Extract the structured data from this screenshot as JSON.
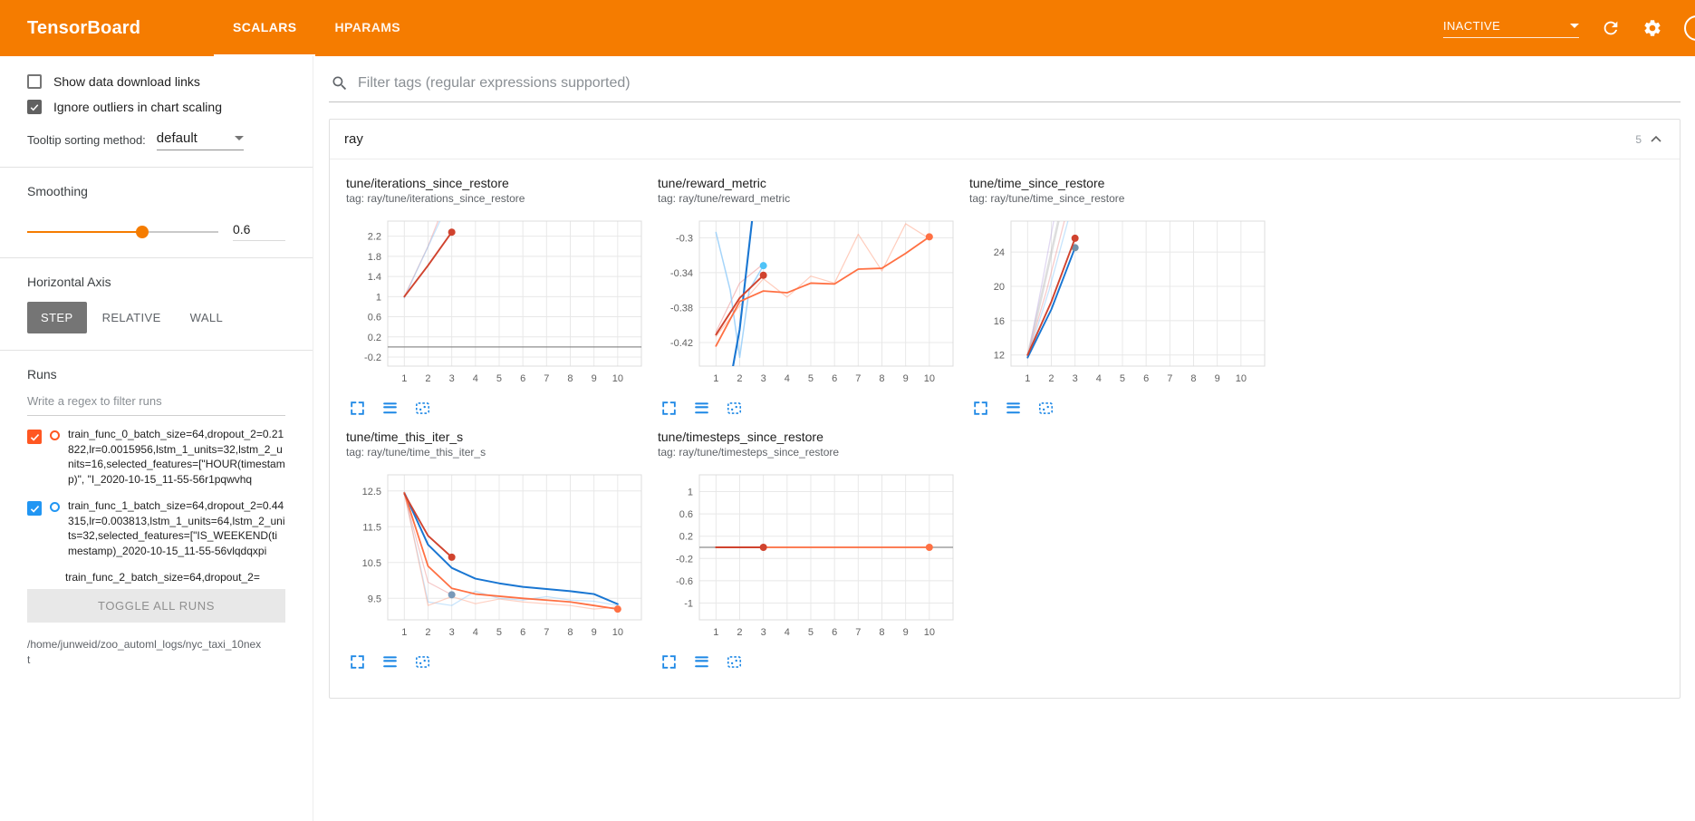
{
  "header": {
    "brand": "TensorBoard",
    "tabs": [
      {
        "label": "SCALARS"
      },
      {
        "label": "HPARAMS"
      }
    ],
    "active_tab": "SCALARS",
    "status_label": "INACTIVE",
    "accent_color": "#f57c00"
  },
  "sidebar": {
    "options": [
      {
        "label": "Show data download links",
        "checked": false
      },
      {
        "label": "Ignore outliers in chart scaling",
        "checked": true
      }
    ],
    "tooltip_sorting": {
      "label": "Tooltip sorting method:",
      "value": "default"
    },
    "smoothing": {
      "label": "Smoothing",
      "value": "0.6",
      "percent": 60
    },
    "horizontal_axis": {
      "label": "Horizontal Axis",
      "options": [
        "STEP",
        "RELATIVE",
        "WALL"
      ],
      "selected": "STEP"
    },
    "runs": {
      "label": "Runs",
      "filter_placeholder": "Write a regex to filter runs",
      "items": [
        {
          "label": "train_func_0_batch_size=64,dropout_2=0.21822,lr=0.0015956,lstm_1_units=32,lstm_2_units=16,selected_features=[\"HOUR(timestamp)\", \"I_2020-10-15_11-55-56r1pqwvhq",
          "checked": true,
          "color": "#ff5722"
        },
        {
          "label": "train_func_1_batch_size=64,dropout_2=0.44315,lr=0.003813,lstm_1_units=64,lstm_2_units=32,selected_features=[\"IS_WEEKEND(timestamp)_2020-10-15_11-55-56vlqdqxpi",
          "checked": true,
          "color": "#2196f3"
        },
        {
          "label": "train_func_2_batch_size=64,dropout_2=",
          "checked": true,
          "color": "#9e9e9e",
          "partially_visible": true
        }
      ],
      "toggle_all_label": "TOGGLE ALL RUNS",
      "log_dir": "/home/junweid/zoo_automl_logs/nyc_taxi_10next"
    }
  },
  "main": {
    "filter_placeholder": "Filter tags (regular expressions supported)",
    "group": {
      "name": "ray",
      "count": "5"
    }
  },
  "chart_data": [
    {
      "type": "line",
      "title": "tune/iterations_since_restore",
      "tag_label": "tag: ray/tune/iterations_since_restore",
      "xlim": [
        0.3,
        11
      ],
      "ylim": [
        -0.38,
        2.5
      ],
      "x_ticks": [
        1,
        2,
        3,
        4,
        5,
        6,
        7,
        8,
        9,
        10
      ],
      "y_ticks": [
        -0.2,
        0.2,
        0.6,
        1,
        1.4,
        1.8,
        2.2
      ],
      "zero_line": true,
      "series": [
        {
          "name": "raw-pink",
          "color": "#ef9a9a",
          "opacity": 0.5,
          "width": 1.3,
          "points": [
            [
              1,
              1
            ],
            [
              1.5,
              1.5
            ],
            [
              2,
              2
            ],
            [
              2.42,
              2.5
            ]
          ]
        },
        {
          "name": "raw-lightblue",
          "color": "#90caf9",
          "opacity": 0.5,
          "width": 1.3,
          "points": [
            [
              1,
              0.97
            ],
            [
              1.5,
              1.49
            ],
            [
              2,
              1.99
            ],
            [
              2.5,
              2.5
            ]
          ]
        },
        {
          "name": "smoothed-red",
          "color": "#d0432e",
          "width": 1.9,
          "dot": true,
          "points": [
            [
              1,
              1
            ],
            [
              2,
              1.62
            ],
            [
              3,
              2.28
            ]
          ]
        }
      ]
    },
    {
      "type": "line",
      "title": "tune/reward_metric",
      "tag_label": "tag: ray/tune/reward_metric",
      "xlim": [
        0.3,
        11
      ],
      "ylim": [
        -0.447,
        -0.281
      ],
      "x_ticks": [
        1,
        2,
        3,
        4,
        5,
        6,
        7,
        8,
        9,
        10
      ],
      "y_ticks": [
        -0.42,
        -0.38,
        -0.34,
        -0.3
      ],
      "zero_line": false,
      "series": [
        {
          "name": "raw-lightorange",
          "color": "#ffab91",
          "opacity": 0.6,
          "width": 1.2,
          "points": [
            [
              1,
              -0.413
            ],
            [
              2,
              -0.378
            ],
            [
              3,
              -0.347
            ],
            [
              4,
              -0.368
            ],
            [
              5,
              -0.344
            ],
            [
              6,
              -0.352
            ],
            [
              7,
              -0.296
            ],
            [
              8,
              -0.338
            ],
            [
              9,
              -0.284
            ],
            [
              10,
              -0.301
            ]
          ]
        },
        {
          "name": "raw-pink",
          "color": "#ef9a9a",
          "opacity": 0.6,
          "width": 1.2,
          "points": [
            [
              1,
              -0.408
            ],
            [
              2,
              -0.352
            ],
            [
              3,
              -0.33
            ]
          ]
        },
        {
          "name": "raw-lightblue",
          "color": "#90caf9",
          "opacity": 0.8,
          "width": 1.5,
          "dot": true,
          "dot_color": "#4fc3f7",
          "points": [
            [
              1,
              -0.294
            ],
            [
              1.6,
              -0.36
            ],
            [
              2,
              -0.437
            ],
            [
              2.4,
              -0.36
            ],
            [
              3,
              -0.332
            ]
          ]
        },
        {
          "name": "smoothed-blue",
          "color": "#1976d2",
          "width": 2.1,
          "points": [
            [
              1.72,
              -0.447
            ],
            [
              2,
              -0.405
            ],
            [
              2.25,
              -0.345
            ],
            [
              2.52,
              -0.281
            ]
          ]
        },
        {
          "name": "smoothed-orange",
          "color": "#ff7043",
          "width": 1.8,
          "dot": true,
          "points": [
            [
              1,
              -0.424
            ],
            [
              2,
              -0.373
            ],
            [
              3,
              -0.361
            ],
            [
              4,
              -0.363
            ],
            [
              5,
              -0.352
            ],
            [
              6,
              -0.353
            ],
            [
              7,
              -0.336
            ],
            [
              8,
              -0.335
            ],
            [
              9,
              -0.318
            ],
            [
              10,
              -0.299
            ]
          ]
        },
        {
          "name": "smoothed-red",
          "color": "#d0432e",
          "width": 1.9,
          "dot": true,
          "points": [
            [
              1,
              -0.411
            ],
            [
              1.5,
              -0.39
            ],
            [
              2,
              -0.369
            ],
            [
              2.5,
              -0.356
            ],
            [
              3,
              -0.343
            ]
          ]
        }
      ]
    },
    {
      "type": "line",
      "title": "tune/time_since_restore",
      "tag_label": "tag: ray/tune/time_since_restore",
      "xlim": [
        0.3,
        11
      ],
      "ylim": [
        10.7,
        27.6
      ],
      "x_ticks": [
        1,
        2,
        3,
        4,
        5,
        6,
        7,
        8,
        9,
        10
      ],
      "y_ticks": [
        12,
        16,
        20,
        24
      ],
      "zero_line": false,
      "series": [
        {
          "name": "raw-gray",
          "color": "#bdbdbd",
          "opacity": 0.5,
          "width": 2.6,
          "points": [
            [
              1,
              11.9
            ],
            [
              1.6,
              19
            ],
            [
              2.3,
              27.6
            ]
          ]
        },
        {
          "name": "raw-lavender",
          "color": "#b39ddb",
          "opacity": 0.4,
          "width": 1.3,
          "points": [
            [
              1,
              11.6
            ],
            [
              1.55,
              19.5
            ],
            [
              2.1,
              27.6
            ]
          ]
        },
        {
          "name": "raw-pink",
          "color": "#ef9a9a",
          "opacity": 0.5,
          "width": 1.3,
          "points": [
            [
              1,
              12
            ],
            [
              1.8,
              19.5
            ],
            [
              2.55,
              27.6
            ]
          ]
        },
        {
          "name": "raw-lightblue",
          "color": "#90caf9",
          "opacity": 0.5,
          "width": 1.3,
          "points": [
            [
              1,
              11.7
            ],
            [
              1.9,
              19.5
            ],
            [
              2.7,
              27.6
            ]
          ]
        },
        {
          "name": "smoothed-blue",
          "color": "#1976d2",
          "width": 1.9,
          "dot": true,
          "dot_color": "#7191a8",
          "points": [
            [
              1,
              11.7
            ],
            [
              2,
              17.3
            ],
            [
              3,
              24.5
            ]
          ]
        },
        {
          "name": "smoothed-red",
          "color": "#d0432e",
          "width": 1.9,
          "dot": true,
          "points": [
            [
              1,
              12
            ],
            [
              2,
              18.2
            ],
            [
              3,
              25.6
            ]
          ]
        }
      ]
    },
    {
      "type": "line",
      "title": "tune/time_this_iter_s",
      "tag_label": "tag: ray/tune/time_this_iter_s",
      "xlim": [
        0.3,
        11
      ],
      "ylim": [
        8.9,
        12.95
      ],
      "x_ticks": [
        1,
        2,
        3,
        4,
        5,
        6,
        7,
        8,
        9,
        10
      ],
      "y_ticks": [
        9.5,
        10.5,
        11.5,
        12.5
      ],
      "zero_line": false,
      "series": [
        {
          "name": "raw-lightblue",
          "color": "#90caf9",
          "opacity": 0.5,
          "width": 1.2,
          "points": [
            [
              1,
              12.45
            ],
            [
              2,
              9.4
            ],
            [
              3,
              9.3
            ],
            [
              4,
              9.7
            ],
            [
              5,
              9.5
            ],
            [
              6,
              9.45
            ],
            [
              7,
              9.55
            ],
            [
              8,
              9.45
            ],
            [
              9,
              9.42
            ],
            [
              10,
              9.3
            ]
          ]
        },
        {
          "name": "raw-lightorange",
          "color": "#ffab91",
          "opacity": 0.55,
          "width": 1.2,
          "points": [
            [
              1,
              12.45
            ],
            [
              2,
              9.3
            ],
            [
              3,
              9.55
            ],
            [
              4,
              9.35
            ],
            [
              5,
              9.48
            ],
            [
              6,
              9.4
            ],
            [
              7,
              9.35
            ],
            [
              8,
              9.3
            ],
            [
              9,
              9.2
            ],
            [
              10,
              9.26
            ]
          ]
        },
        {
          "name": "raw-pink",
          "color": "#ef9a9a",
          "opacity": 0.55,
          "width": 1.2,
          "dot": true,
          "dot_color": "#7a99b8",
          "points": [
            [
              1,
              12.4
            ],
            [
              2,
              9.95
            ],
            [
              3,
              9.6
            ]
          ]
        },
        {
          "name": "smoothed-blue",
          "color": "#1976d2",
          "width": 2,
          "points": [
            [
              1,
              12.45
            ],
            [
              2,
              11.0
            ],
            [
              3,
              10.35
            ],
            [
              4,
              10.05
            ],
            [
              5,
              9.92
            ],
            [
              6,
              9.82
            ],
            [
              7,
              9.76
            ],
            [
              8,
              9.7
            ],
            [
              9,
              9.62
            ],
            [
              10,
              9.34
            ]
          ]
        },
        {
          "name": "smoothed-orange",
          "color": "#ff7043",
          "width": 1.8,
          "dot": true,
          "points": [
            [
              1,
              12.45
            ],
            [
              2,
              10.4
            ],
            [
              3,
              9.78
            ],
            [
              4,
              9.62
            ],
            [
              5,
              9.56
            ],
            [
              6,
              9.5
            ],
            [
              7,
              9.45
            ],
            [
              8,
              9.4
            ],
            [
              9,
              9.3
            ],
            [
              10,
              9.2
            ]
          ]
        },
        {
          "name": "smoothed-red",
          "color": "#d0432e",
          "width": 1.9,
          "dot": true,
          "points": [
            [
              1,
              12.42
            ],
            [
              2,
              11.25
            ],
            [
              3,
              10.65
            ]
          ]
        }
      ]
    },
    {
      "type": "line",
      "title": "tune/timesteps_since_restore",
      "tag_label": "tag: ray/tune/timesteps_since_restore",
      "xlim": [
        0.3,
        11
      ],
      "ylim": [
        -1.3,
        1.3
      ],
      "x_ticks": [
        1,
        2,
        3,
        4,
        5,
        6,
        7,
        8,
        9,
        10
      ],
      "y_ticks": [
        -1,
        -0.6,
        -0.2,
        0.2,
        0.6,
        1
      ],
      "zero_line": true,
      "series": [
        {
          "name": "smoothed-orange",
          "color": "#ff7043",
          "width": 1.8,
          "dot": true,
          "points": [
            [
              1,
              0
            ],
            [
              10,
              0
            ]
          ]
        },
        {
          "name": "smoothed-red",
          "color": "#d0432e",
          "width": 1.9,
          "dot": true,
          "points": [
            [
              1,
              0
            ],
            [
              3,
              0
            ]
          ]
        }
      ]
    }
  ]
}
